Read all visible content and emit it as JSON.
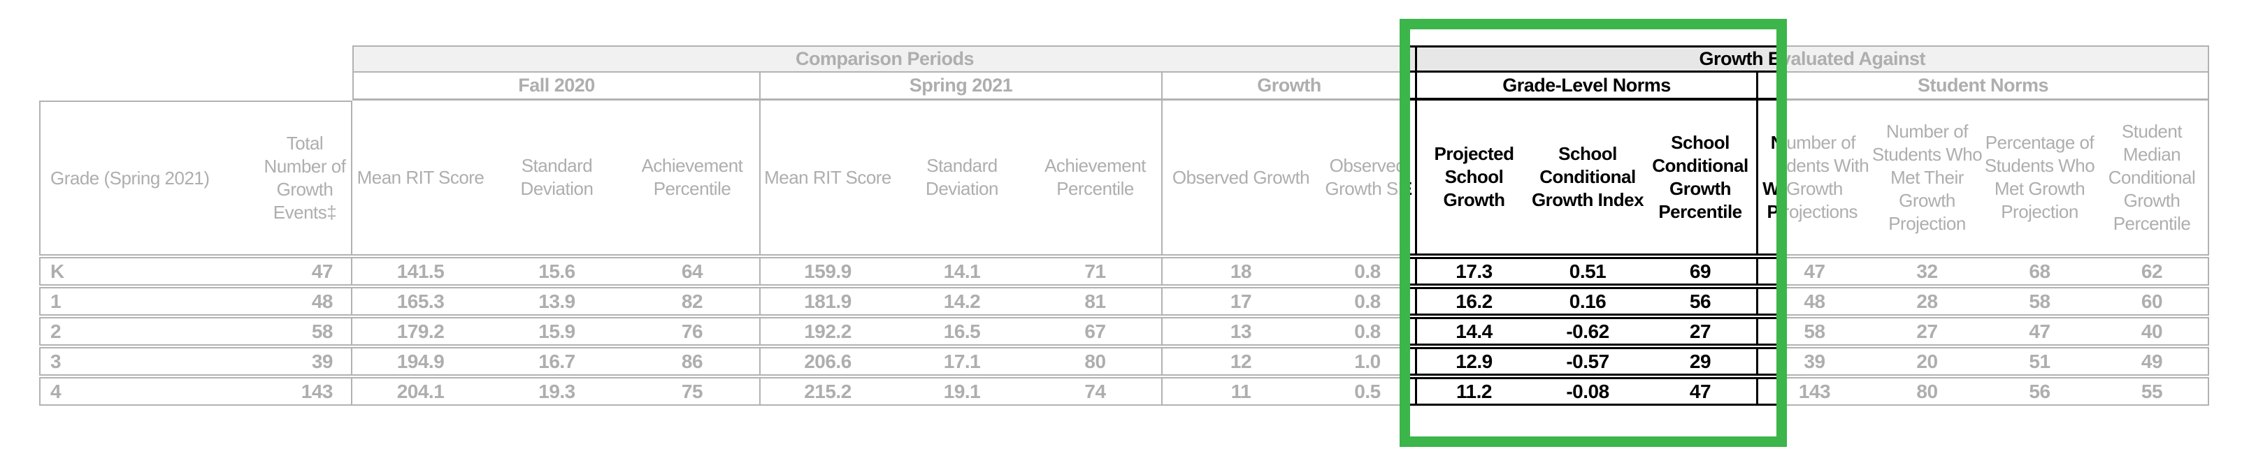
{
  "report": {
    "corner": {
      "grade_header": "Grade  (Spring 2021)",
      "total_header": "Total Number of Growth Events‡"
    },
    "bands": {
      "comparison": "Comparison Periods",
      "growth_eval": "Growth Evaluated Against"
    },
    "sections": [
      {
        "key": "fall-2020",
        "label": "Fall 2020",
        "columns": [
          "Mean RIT Score",
          "Standard Deviation",
          "Achievement Percentile"
        ]
      },
      {
        "key": "spring-2021",
        "label": "Spring 2021",
        "columns": [
          "Mean RIT Score",
          "Standard Deviation",
          "Achievement Percentile"
        ]
      },
      {
        "key": "growth",
        "label": "Growth",
        "columns": [
          "Observed Growth",
          "Observed Growth SE"
        ]
      },
      {
        "key": "grade-level-norms",
        "label": "Grade-Level Norms",
        "columns": [
          "Projected School Growth",
          "School Conditional Growth Index",
          "School Conditional Growth Percentile"
        ]
      },
      {
        "key": "student-norms",
        "label": "Student Norms",
        "columns": [
          "Number of Students With Growth Projections",
          "Number of Students Who Met Their Growth Projection",
          "Percentage of Students Who Met Growth Projection",
          "Student Median Conditional Growth Percentile"
        ]
      }
    ],
    "rows": [
      {
        "grade": "K",
        "values": [
          "47",
          "141.5",
          "15.6",
          "64",
          "159.9",
          "14.1",
          "71",
          "18",
          "0.8",
          "17.3",
          "0.51",
          "69",
          "47",
          "32",
          "68",
          "62"
        ]
      },
      {
        "grade": "1",
        "values": [
          "48",
          "165.3",
          "13.9",
          "82",
          "181.9",
          "14.2",
          "81",
          "17",
          "0.8",
          "16.2",
          "0.16",
          "56",
          "48",
          "28",
          "58",
          "60"
        ]
      },
      {
        "grade": "2",
        "values": [
          "58",
          "179.2",
          "15.9",
          "76",
          "192.2",
          "16.5",
          "67",
          "13",
          "0.8",
          "14.4",
          "-0.62",
          "27",
          "58",
          "27",
          "47",
          "40"
        ]
      },
      {
        "grade": "3",
        "values": [
          "39",
          "194.9",
          "16.7",
          "86",
          "206.6",
          "17.1",
          "80",
          "12",
          "1.0",
          "12.9",
          "-0.57",
          "29",
          "39",
          "20",
          "51",
          "49"
        ]
      },
      {
        "grade": "4",
        "values": [
          "143",
          "204.1",
          "19.3",
          "75",
          "215.2",
          "19.1",
          "74",
          "11",
          "0.5",
          "11.2",
          "-0.08",
          "47",
          "143",
          "80",
          "56",
          "55"
        ]
      }
    ]
  },
  "highlight": {
    "highlighted_section": "Grade-Level Norms",
    "color": "#3cb54a"
  },
  "colors": {
    "muted_text": "#aeaeae",
    "muted_line": "#b2b2b2",
    "band_background": "#f1f1f1",
    "focus_text": "#000000",
    "focus_line": "#000000",
    "highlight_green": "#3cb54a",
    "page_background": "#ffffff"
  }
}
